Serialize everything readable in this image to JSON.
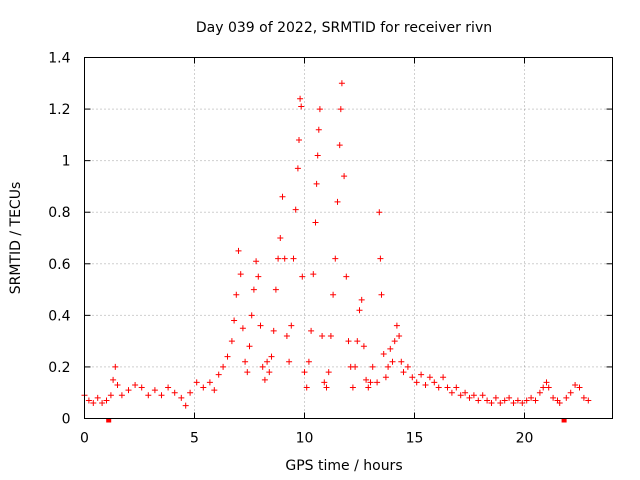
{
  "chart_data": {
    "type": "scatter",
    "title": "Day 039 of 2022, SRMTID for receiver rivn",
    "xlabel": "GPS time / hours",
    "ylabel": "SRMTID / TECUs",
    "xlim": [
      0,
      24
    ],
    "ylim": [
      0,
      1.4
    ],
    "xticks": [
      0,
      5,
      10,
      15,
      20
    ],
    "xtick_labels": [
      "0",
      "5",
      "10",
      "15",
      "20"
    ],
    "yticks": [
      0,
      0.2,
      0.4,
      0.6,
      0.8,
      1,
      1.2,
      1.4
    ],
    "ytick_labels": [
      "0",
      "0.2",
      "0.4",
      "0.6",
      "0.8",
      "1",
      "1.2",
      "1.4"
    ],
    "grid": true,
    "marker": "+",
    "color": "#ff0000",
    "x_range_hours": [
      0,
      22.9
    ],
    "data_gaps_hours": [
      1.1,
      21.8
    ],
    "series": [
      {
        "name": "SRMTID",
        "points": [
          [
            0.0,
            0.09
          ],
          [
            0.2,
            0.07
          ],
          [
            0.4,
            0.06
          ],
          [
            0.6,
            0.08
          ],
          [
            0.8,
            0.06
          ],
          [
            1.0,
            0.07
          ],
          [
            1.2,
            0.09
          ],
          [
            1.3,
            0.15
          ],
          [
            1.4,
            0.2
          ],
          [
            1.5,
            0.13
          ],
          [
            1.7,
            0.09
          ],
          [
            2.0,
            0.11
          ],
          [
            2.3,
            0.13
          ],
          [
            2.6,
            0.12
          ],
          [
            2.9,
            0.09
          ],
          [
            3.2,
            0.11
          ],
          [
            3.5,
            0.09
          ],
          [
            3.8,
            0.12
          ],
          [
            4.1,
            0.1
          ],
          [
            4.4,
            0.08
          ],
          [
            4.6,
            0.05
          ],
          [
            4.8,
            0.1
          ],
          [
            5.1,
            0.14
          ],
          [
            5.4,
            0.12
          ],
          [
            5.7,
            0.14
          ],
          [
            5.9,
            0.11
          ],
          [
            6.1,
            0.17
          ],
          [
            6.3,
            0.2
          ],
          [
            6.5,
            0.24
          ],
          [
            6.7,
            0.3
          ],
          [
            6.8,
            0.38
          ],
          [
            6.9,
            0.48
          ],
          [
            7.0,
            0.65
          ],
          [
            7.1,
            0.56
          ],
          [
            7.2,
            0.35
          ],
          [
            7.3,
            0.22
          ],
          [
            7.4,
            0.18
          ],
          [
            7.5,
            0.28
          ],
          [
            7.6,
            0.4
          ],
          [
            7.7,
            0.5
          ],
          [
            7.8,
            0.61
          ],
          [
            7.9,
            0.55
          ],
          [
            8.0,
            0.36
          ],
          [
            8.1,
            0.2
          ],
          [
            8.2,
            0.15
          ],
          [
            8.3,
            0.22
          ],
          [
            8.4,
            0.18
          ],
          [
            8.5,
            0.24
          ],
          [
            8.6,
            0.34
          ],
          [
            8.7,
            0.5
          ],
          [
            8.8,
            0.62
          ],
          [
            8.9,
            0.7
          ],
          [
            9.0,
            0.86
          ],
          [
            9.1,
            0.62
          ],
          [
            9.2,
            0.32
          ],
          [
            9.3,
            0.22
          ],
          [
            9.4,
            0.36
          ],
          [
            9.5,
            0.62
          ],
          [
            9.6,
            0.81
          ],
          [
            9.7,
            0.97
          ],
          [
            9.75,
            1.08
          ],
          [
            9.8,
            1.24
          ],
          [
            9.85,
            1.21
          ],
          [
            9.9,
            0.55
          ],
          [
            10.0,
            0.18
          ],
          [
            10.1,
            0.12
          ],
          [
            10.2,
            0.22
          ],
          [
            10.3,
            0.34
          ],
          [
            10.4,
            0.56
          ],
          [
            10.5,
            0.76
          ],
          [
            10.55,
            0.91
          ],
          [
            10.6,
            1.02
          ],
          [
            10.65,
            1.12
          ],
          [
            10.7,
            1.2
          ],
          [
            10.8,
            0.32
          ],
          [
            10.9,
            0.14
          ],
          [
            11.0,
            0.12
          ],
          [
            11.1,
            0.18
          ],
          [
            11.2,
            0.32
          ],
          [
            11.3,
            0.48
          ],
          [
            11.4,
            0.62
          ],
          [
            11.5,
            0.84
          ],
          [
            11.6,
            1.06
          ],
          [
            11.65,
            1.2
          ],
          [
            11.7,
            1.3
          ],
          [
            11.8,
            0.94
          ],
          [
            11.9,
            0.55
          ],
          [
            12.0,
            0.3
          ],
          [
            12.1,
            0.2
          ],
          [
            12.2,
            0.12
          ],
          [
            12.3,
            0.2
          ],
          [
            12.4,
            0.3
          ],
          [
            12.5,
            0.42
          ],
          [
            12.6,
            0.46
          ],
          [
            12.7,
            0.28
          ],
          [
            12.8,
            0.15
          ],
          [
            12.9,
            0.12
          ],
          [
            13.0,
            0.14
          ],
          [
            13.1,
            0.2
          ],
          [
            13.3,
            0.14
          ],
          [
            13.4,
            0.8
          ],
          [
            13.45,
            0.62
          ],
          [
            13.5,
            0.48
          ],
          [
            13.6,
            0.25
          ],
          [
            13.7,
            0.16
          ],
          [
            13.8,
            0.2
          ],
          [
            13.9,
            0.27
          ],
          [
            14.0,
            0.22
          ],
          [
            14.1,
            0.3
          ],
          [
            14.2,
            0.36
          ],
          [
            14.3,
            0.32
          ],
          [
            14.4,
            0.22
          ],
          [
            14.5,
            0.18
          ],
          [
            14.7,
            0.2
          ],
          [
            14.9,
            0.16
          ],
          [
            15.1,
            0.14
          ],
          [
            15.3,
            0.17
          ],
          [
            15.5,
            0.13
          ],
          [
            15.7,
            0.16
          ],
          [
            15.9,
            0.14
          ],
          [
            16.1,
            0.12
          ],
          [
            16.3,
            0.16
          ],
          [
            16.5,
            0.12
          ],
          [
            16.7,
            0.1
          ],
          [
            16.9,
            0.12
          ],
          [
            17.1,
            0.09
          ],
          [
            17.3,
            0.1
          ],
          [
            17.5,
            0.08
          ],
          [
            17.7,
            0.09
          ],
          [
            17.9,
            0.07
          ],
          [
            18.1,
            0.09
          ],
          [
            18.3,
            0.07
          ],
          [
            18.5,
            0.06
          ],
          [
            18.7,
            0.08
          ],
          [
            18.9,
            0.06
          ],
          [
            19.1,
            0.07
          ],
          [
            19.3,
            0.08
          ],
          [
            19.5,
            0.06
          ],
          [
            19.7,
            0.07
          ],
          [
            19.9,
            0.06
          ],
          [
            20.1,
            0.07
          ],
          [
            20.3,
            0.08
          ],
          [
            20.5,
            0.07
          ],
          [
            20.7,
            0.1
          ],
          [
            20.85,
            0.12
          ],
          [
            21.0,
            0.14
          ],
          [
            21.1,
            0.12
          ],
          [
            21.3,
            0.08
          ],
          [
            21.5,
            0.07
          ],
          [
            21.6,
            0.06
          ],
          [
            21.9,
            0.08
          ],
          [
            22.1,
            0.1
          ],
          [
            22.3,
            0.13
          ],
          [
            22.5,
            0.12
          ],
          [
            22.7,
            0.08
          ],
          [
            22.9,
            0.07
          ]
        ]
      }
    ]
  }
}
